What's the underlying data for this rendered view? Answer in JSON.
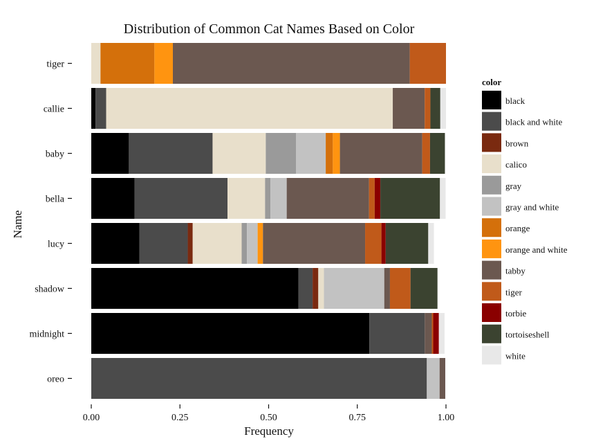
{
  "chart_data": {
    "type": "bar",
    "orientation": "horizontal",
    "stacked": true,
    "normalized": true,
    "title": "Distribution of Common Cat Names Based on Color",
    "xlabel": "Frequency",
    "ylabel": "Name",
    "xlim": [
      0,
      1
    ],
    "xticks": [
      "0.00",
      "0.25",
      "0.50",
      "0.75",
      "1.00"
    ],
    "grid": false,
    "legend_position": "right",
    "legend_title": "color",
    "categories": [
      "tiger",
      "callie",
      "baby",
      "bella",
      "lucy",
      "shadow",
      "midnight",
      "oreo"
    ],
    "colors": [
      {
        "name": "black",
        "color": "#000000"
      },
      {
        "name": "black and white",
        "color": "#4b4b4b"
      },
      {
        "name": "brown",
        "color": "#7a2a10"
      },
      {
        "name": "calico",
        "color": "#e8dfcb"
      },
      {
        "name": "gray",
        "color": "#9a9a9a"
      },
      {
        "name": "gray and white",
        "color": "#c2c2c2"
      },
      {
        "name": "orange",
        "color": "#d4700b"
      },
      {
        "name": "orange and white",
        "color": "#ff9410"
      },
      {
        "name": "tabby",
        "color": "#6b5850"
      },
      {
        "name": "tiger",
        "color": "#c05a1a"
      },
      {
        "name": "torbie",
        "color": "#8a0000"
      },
      {
        "name": "tortoiseshell",
        "color": "#3b4330"
      },
      {
        "name": "white",
        "color": "#e8e8e8"
      }
    ],
    "series": [
      {
        "name": "black",
        "values": [
          0.0,
          0.012,
          0.106,
          0.122,
          0.136,
          0.584,
          0.784,
          0.0
        ]
      },
      {
        "name": "black and white",
        "values": [
          0.0,
          0.03,
          0.236,
          0.262,
          0.136,
          0.04,
          0.156,
          0.946
        ]
      },
      {
        "name": "brown",
        "values": [
          0.0,
          0.0,
          0.0,
          0.0,
          0.014,
          0.016,
          0.0,
          0.0
        ]
      },
      {
        "name": "calico",
        "values": [
          0.026,
          0.808,
          0.15,
          0.106,
          0.138,
          0.016,
          0.0,
          0.0
        ]
      },
      {
        "name": "gray",
        "values": [
          0.0,
          0.0,
          0.085,
          0.015,
          0.015,
          0.0,
          0.0,
          0.0
        ]
      },
      {
        "name": "gray and white",
        "values": [
          0.0,
          0.0,
          0.084,
          0.046,
          0.03,
          0.17,
          0.0,
          0.036
        ]
      },
      {
        "name": "orange",
        "values": [
          0.152,
          0.0,
          0.02,
          0.0,
          0.0,
          0.0,
          0.0,
          0.0
        ]
      },
      {
        "name": "orange and white",
        "values": [
          0.052,
          0.0,
          0.02,
          0.0,
          0.015,
          0.0,
          0.0,
          0.0
        ]
      },
      {
        "name": "tabby",
        "values": [
          0.668,
          0.09,
          0.232,
          0.232,
          0.288,
          0.016,
          0.02,
          0.016
        ]
      },
      {
        "name": "tiger",
        "values": [
          0.102,
          0.016,
          0.022,
          0.016,
          0.046,
          0.058,
          0.004,
          0.0
        ]
      },
      {
        "name": "torbie",
        "values": [
          0.0,
          0.0,
          0.0,
          0.016,
          0.012,
          0.0,
          0.016,
          0.0
        ]
      },
      {
        "name": "tortoiseshell",
        "values": [
          0.0,
          0.028,
          0.042,
          0.168,
          0.12,
          0.076,
          0.0,
          0.0
        ]
      },
      {
        "name": "white",
        "values": [
          0.0,
          0.016,
          0.0,
          0.016,
          0.016,
          0.0,
          0.016,
          0.0
        ]
      }
    ]
  }
}
